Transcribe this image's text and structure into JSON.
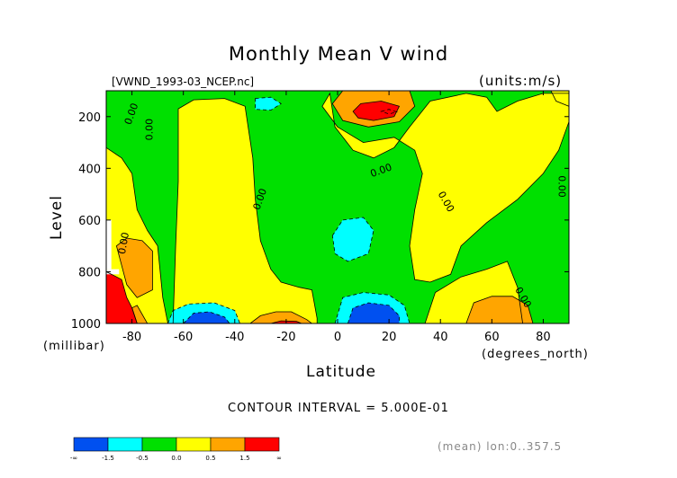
{
  "chart_data": {
    "type": "heatmap",
    "title": "Monthly Mean V wind",
    "file_label": "[VWND_1993-03_NCEP.nc]",
    "units_label": "(units:m/s)",
    "xlabel": "Latitude",
    "x_unit_label": "(degrees_north)",
    "ylabel": "Level",
    "y_unit_label": "(millibar)",
    "xlim": [
      -90,
      90
    ],
    "ylim": [
      1000,
      100
    ],
    "x_ticks": [
      -80,
      -60,
      -40,
      -20,
      0,
      20,
      40,
      60,
      80
    ],
    "y_ticks": [
      200,
      400,
      600,
      800,
      1000
    ],
    "contour_interval_text": "CONTOUR INTERVAL = 5.000E-01",
    "mean_note": "(mean) lon:0..357.5",
    "colorbar": {
      "labels": [
        "-∞",
        "-1.5",
        "-0.5",
        "0.0",
        "0.5",
        "1.5",
        "∞"
      ],
      "colors": [
        "#0050f0",
        "#00ffff",
        "#00e000",
        "#ffff00",
        "#ffa500",
        "#ff0000"
      ]
    },
    "regions": [
      {
        "name": "green-background",
        "color": "#00e000",
        "pts": [
          [
            -90,
            100
          ],
          [
            90,
            100
          ],
          [
            90,
            1000
          ],
          [
            -90,
            1000
          ]
        ]
      },
      {
        "name": "yellow-upper-left",
        "color": "#ffff00",
        "pts": [
          [
            -90,
            320
          ],
          [
            -84,
            360
          ],
          [
            -80,
            420
          ],
          [
            -78,
            560
          ],
          [
            -74,
            640
          ],
          [
            -70,
            700
          ],
          [
            -68,
            900
          ],
          [
            -66,
            1000
          ],
          [
            -90,
            1000
          ]
        ]
      },
      {
        "name": "yellow-left-column",
        "color": "#ffff00",
        "pts": [
          [
            -62,
            170
          ],
          [
            -56,
            135
          ],
          [
            -44,
            130
          ],
          [
            -36,
            160
          ],
          [
            -33,
            360
          ],
          [
            -32,
            520
          ],
          [
            -30,
            680
          ],
          [
            -26,
            790
          ],
          [
            -22,
            840
          ],
          [
            -15,
            860
          ],
          [
            -10,
            870
          ],
          [
            -8,
            980
          ],
          [
            -8,
            1000
          ],
          [
            -64,
            1000
          ],
          [
            -63,
            700
          ],
          [
            -62,
            450
          ]
        ]
      },
      {
        "name": "yellow-upper-right",
        "color": "#ffff00",
        "pts": [
          [
            -3,
            110
          ],
          [
            -1,
            240
          ],
          [
            6,
            330
          ],
          [
            14,
            360
          ],
          [
            22,
            320
          ],
          [
            28,
            240
          ],
          [
            36,
            140
          ],
          [
            50,
            110
          ],
          [
            58,
            125
          ],
          [
            62,
            180
          ],
          [
            70,
            140
          ],
          [
            80,
            110
          ],
          [
            90,
            110
          ],
          [
            90,
            220
          ],
          [
            86,
            330
          ],
          [
            80,
            420
          ],
          [
            70,
            520
          ],
          [
            58,
            610
          ],
          [
            48,
            700
          ],
          [
            44,
            810
          ],
          [
            36,
            840
          ],
          [
            30,
            830
          ],
          [
            28,
            700
          ],
          [
            30,
            560
          ],
          [
            33,
            420
          ],
          [
            30,
            330
          ],
          [
            22,
            280
          ],
          [
            10,
            300
          ],
          [
            0,
            240
          ],
          [
            -6,
            160
          ]
        ]
      },
      {
        "name": "yellow-lower-right",
        "color": "#ffff00",
        "pts": [
          [
            38,
            880
          ],
          [
            48,
            820
          ],
          [
            58,
            790
          ],
          [
            66,
            760
          ],
          [
            70,
            860
          ],
          [
            72,
            1000
          ],
          [
            34,
            1000
          ]
        ]
      },
      {
        "name": "yellow-top-right-corner",
        "color": "#ffff00",
        "pts": [
          [
            83,
            100
          ],
          [
            90,
            100
          ],
          [
            90,
            160
          ],
          [
            85,
            140
          ]
        ]
      },
      {
        "name": "cyan-upper",
        "color": "#00ffff",
        "pts": [
          [
            -32,
            130
          ],
          [
            -26,
            125
          ],
          [
            -22,
            150
          ],
          [
            -26,
            175
          ],
          [
            -32,
            172
          ]
        ]
      },
      {
        "name": "cyan-small",
        "color": "#00ffff",
        "pts": [
          [
            17,
            180
          ],
          [
            20,
            172
          ],
          [
            23,
            182
          ],
          [
            20,
            190
          ]
        ]
      },
      {
        "name": "cyan-mid",
        "color": "#00ffff",
        "pts": [
          [
            -2,
            660
          ],
          [
            2,
            600
          ],
          [
            10,
            590
          ],
          [
            14,
            640
          ],
          [
            12,
            730
          ],
          [
            4,
            760
          ],
          [
            -1,
            730
          ]
        ]
      },
      {
        "name": "cyan-bottom-left",
        "color": "#00ffff",
        "pts": [
          [
            -66,
            1000
          ],
          [
            -64,
            950
          ],
          [
            -58,
            925
          ],
          [
            -48,
            920
          ],
          [
            -40,
            950
          ],
          [
            -38,
            1000
          ]
        ]
      },
      {
        "name": "cyan-bottom-center",
        "color": "#00ffff",
        "pts": [
          [
            -1,
            1000
          ],
          [
            2,
            900
          ],
          [
            10,
            880
          ],
          [
            20,
            890
          ],
          [
            26,
            930
          ],
          [
            28,
            1000
          ]
        ]
      },
      {
        "name": "blue-bottom-left",
        "color": "#0050f0",
        "pts": [
          [
            -60,
            1000
          ],
          [
            -56,
            960
          ],
          [
            -50,
            955
          ],
          [
            -44,
            975
          ],
          [
            -42,
            1000
          ]
        ]
      },
      {
        "name": "blue-bottom-center",
        "color": "#0050f0",
        "pts": [
          [
            4,
            1000
          ],
          [
            6,
            940
          ],
          [
            12,
            920
          ],
          [
            20,
            930
          ],
          [
            24,
            970
          ],
          [
            24,
            1000
          ]
        ]
      },
      {
        "name": "orange-upper",
        "color": "#ffa500",
        "pts": [
          [
            -2,
            150
          ],
          [
            2,
            100
          ],
          [
            16,
            80
          ],
          [
            28,
            100
          ],
          [
            30,
            160
          ],
          [
            24,
            220
          ],
          [
            12,
            240
          ],
          [
            2,
            215
          ]
        ]
      },
      {
        "name": "red-upper",
        "color": "#ff0000",
        "pts": [
          [
            6,
            180
          ],
          [
            9,
            150
          ],
          [
            17,
            140
          ],
          [
            24,
            160
          ],
          [
            22,
            200
          ],
          [
            14,
            215
          ],
          [
            8,
            205
          ]
        ]
      },
      {
        "name": "orange-left",
        "color": "#ffa500",
        "pts": [
          [
            -86,
            700
          ],
          [
            -82,
            670
          ],
          [
            -76,
            680
          ],
          [
            -72,
            720
          ],
          [
            -72,
            870
          ],
          [
            -78,
            900
          ],
          [
            -82,
            850
          ]
        ]
      },
      {
        "name": "red-left",
        "color": "#ff0000",
        "pts": [
          [
            -90,
            800
          ],
          [
            -84,
            830
          ],
          [
            -82,
            900
          ],
          [
            -80,
            940
          ],
          [
            -78,
            1000
          ],
          [
            -90,
            1000
          ]
        ]
      },
      {
        "name": "orange-lower-left-edge",
        "color": "#ffa500",
        "pts": [
          [
            -78,
            1000
          ],
          [
            -80,
            940
          ],
          [
            -78,
            930
          ],
          [
            -74,
            1000
          ]
        ]
      },
      {
        "name": "orange-bottom-mid",
        "color": "#ffa500",
        "pts": [
          [
            -34,
            1000
          ],
          [
            -30,
            970
          ],
          [
            -24,
            955
          ],
          [
            -18,
            955
          ],
          [
            -12,
            985
          ],
          [
            -10,
            1000
          ]
        ]
      },
      {
        "name": "red-bottom-mid",
        "color": "#ff0000",
        "pts": [
          [
            -26,
            1000
          ],
          [
            -22,
            990
          ],
          [
            -16,
            992
          ],
          [
            -14,
            1000
          ]
        ]
      },
      {
        "name": "orange-bottom-right",
        "color": "#ffa500",
        "pts": [
          [
            50,
            1000
          ],
          [
            53,
            920
          ],
          [
            60,
            895
          ],
          [
            68,
            895
          ],
          [
            74,
            930
          ],
          [
            76,
            1000
          ]
        ]
      },
      {
        "name": "white-missing-top",
        "color": "#ffffff",
        "pts": [
          [
            -90,
            600
          ],
          [
            -88,
            600
          ],
          [
            -88,
            790
          ],
          [
            -90,
            790
          ]
        ]
      },
      {
        "name": "white-missing-bottom",
        "color": "#ffffff",
        "pts": [
          [
            -90,
            790
          ],
          [
            -85,
            790
          ],
          [
            -85,
            810
          ],
          [
            -90,
            810
          ]
        ]
      }
    ],
    "zero_contour_labels": [
      {
        "text": "0.00",
        "lat": -80,
        "level": 190,
        "rot": -70
      },
      {
        "text": "0.00",
        "lat": -73,
        "level": 250,
        "rot": -90
      },
      {
        "text": "0.00",
        "lat": -30,
        "level": 520,
        "rot": -70
      },
      {
        "text": "0.00",
        "lat": 17,
        "level": 410,
        "rot": -20
      },
      {
        "text": "0.00",
        "lat": 42,
        "level": 530,
        "rot": 60
      },
      {
        "text": "0.00",
        "lat": 87,
        "level": 470,
        "rot": 90
      },
      {
        "text": "0.00",
        "lat": 72,
        "level": 900,
        "rot": 60
      },
      {
        "text": "0.00",
        "lat": -83,
        "level": 690,
        "rot": -80
      }
    ]
  }
}
